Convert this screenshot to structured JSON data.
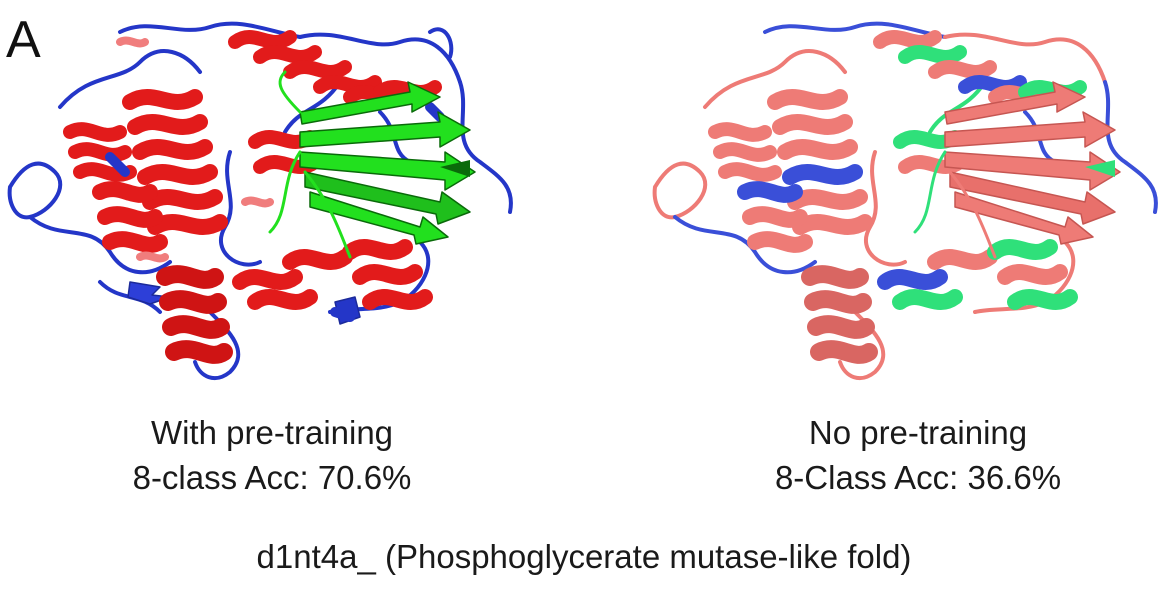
{
  "panel_label": "A",
  "left_panel": {
    "title": "With pre-training",
    "metric": "8-class Acc: 70.6%",
    "colors": {
      "helix": "#e21b1b",
      "helix_light": "#f07d7d",
      "strand": "#22e01e",
      "strand_dark": "#0a6a0a",
      "coil": "#2436c8"
    }
  },
  "right_panel": {
    "title": "No pre-training",
    "metric": "8-Class Acc: 36.6%",
    "colors": {
      "base": "#ee7b76",
      "base_dark": "#c65652",
      "accent_green": "#2fe07a",
      "accent_blue": "#3a4fd8"
    }
  },
  "figure_caption": "d1nt4a_ (Phosphoglycerate mutase-like fold)"
}
